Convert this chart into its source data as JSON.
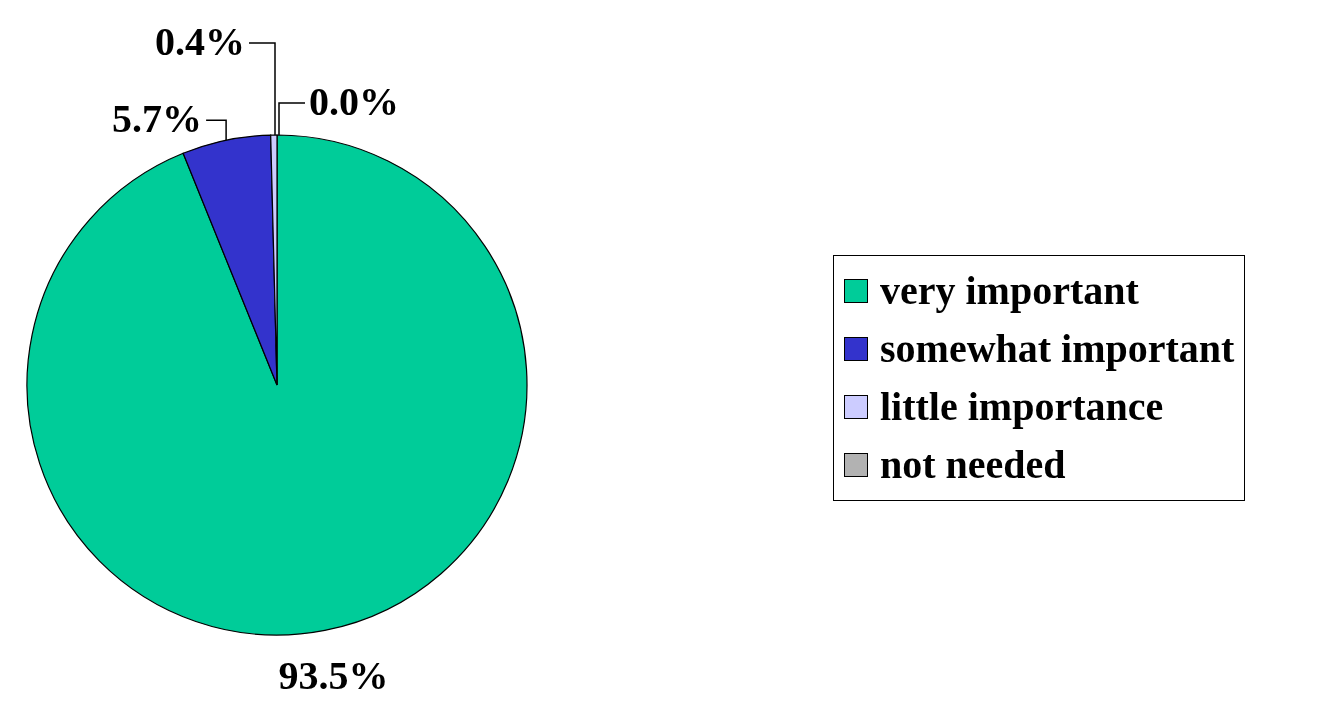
{
  "chart_data": {
    "type": "pie",
    "categories": [
      "very important",
      "somewhat important",
      "little importance",
      "not needed"
    ],
    "values": [
      93.5,
      5.7,
      0.4,
      0.0
    ],
    "colors": [
      "#00cc99",
      "#3333cc",
      "#ccccff",
      "#b2b2b2"
    ],
    "value_labels": [
      "93.5%",
      "5.7%",
      "0.4%",
      "0.0%"
    ],
    "legend": "right"
  }
}
